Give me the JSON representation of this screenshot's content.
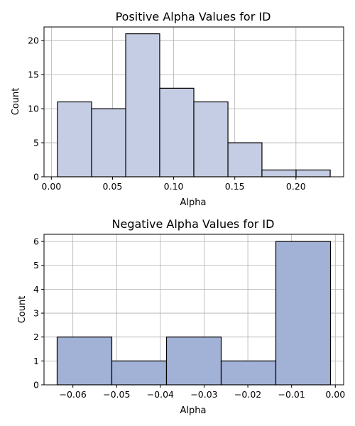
{
  "chart_data": [
    {
      "type": "bar",
      "title": "Positive Alpha Values for ID",
      "xlabel": "Alpha",
      "ylabel": "Count",
      "bin_edges": [
        0.005,
        0.0329,
        0.0608,
        0.0886,
        0.1165,
        0.1444,
        0.1722,
        0.2001,
        0.228
      ],
      "values": [
        11,
        10,
        21,
        13,
        11,
        5,
        1,
        1
      ],
      "xlim": [
        -0.006,
        0.239
      ],
      "ylim": [
        0,
        22
      ],
      "xticks": [
        0.0,
        0.05,
        0.1,
        0.15,
        0.2
      ],
      "xtick_labels": [
        "0.00",
        "0.05",
        "0.10",
        "0.15",
        "0.20"
      ],
      "yticks": [
        0,
        5,
        10,
        15,
        20
      ],
      "ytick_labels": [
        "0",
        "5",
        "10",
        "15",
        "20"
      ],
      "grid": true,
      "bar_color": "#c4cde3",
      "edge_color": "#000000"
    },
    {
      "type": "bar",
      "title": "Negative Alpha Values for ID",
      "xlabel": "Alpha",
      "ylabel": "Count",
      "bin_edges": [
        -0.0636,
        -0.0511,
        -0.0386,
        -0.0261,
        -0.0136,
        -0.0011
      ],
      "values": [
        2,
        1,
        2,
        1,
        6
      ],
      "xlim": [
        -0.0666,
        0.0019
      ],
      "ylim": [
        0,
        6.3
      ],
      "xticks": [
        -0.06,
        -0.05,
        -0.04,
        -0.03,
        -0.02,
        -0.01,
        0.0
      ],
      "xtick_labels": [
        "−0.06",
        "−0.05",
        "−0.04",
        "−0.03",
        "−0.02",
        "−0.01",
        "0.00"
      ],
      "yticks": [
        0,
        1,
        2,
        3,
        4,
        5,
        6
      ],
      "ytick_labels": [
        "0",
        "1",
        "2",
        "3",
        "4",
        "5",
        "6"
      ],
      "grid": true,
      "bar_color": "#a2b1d6",
      "edge_color": "#000000"
    }
  ]
}
